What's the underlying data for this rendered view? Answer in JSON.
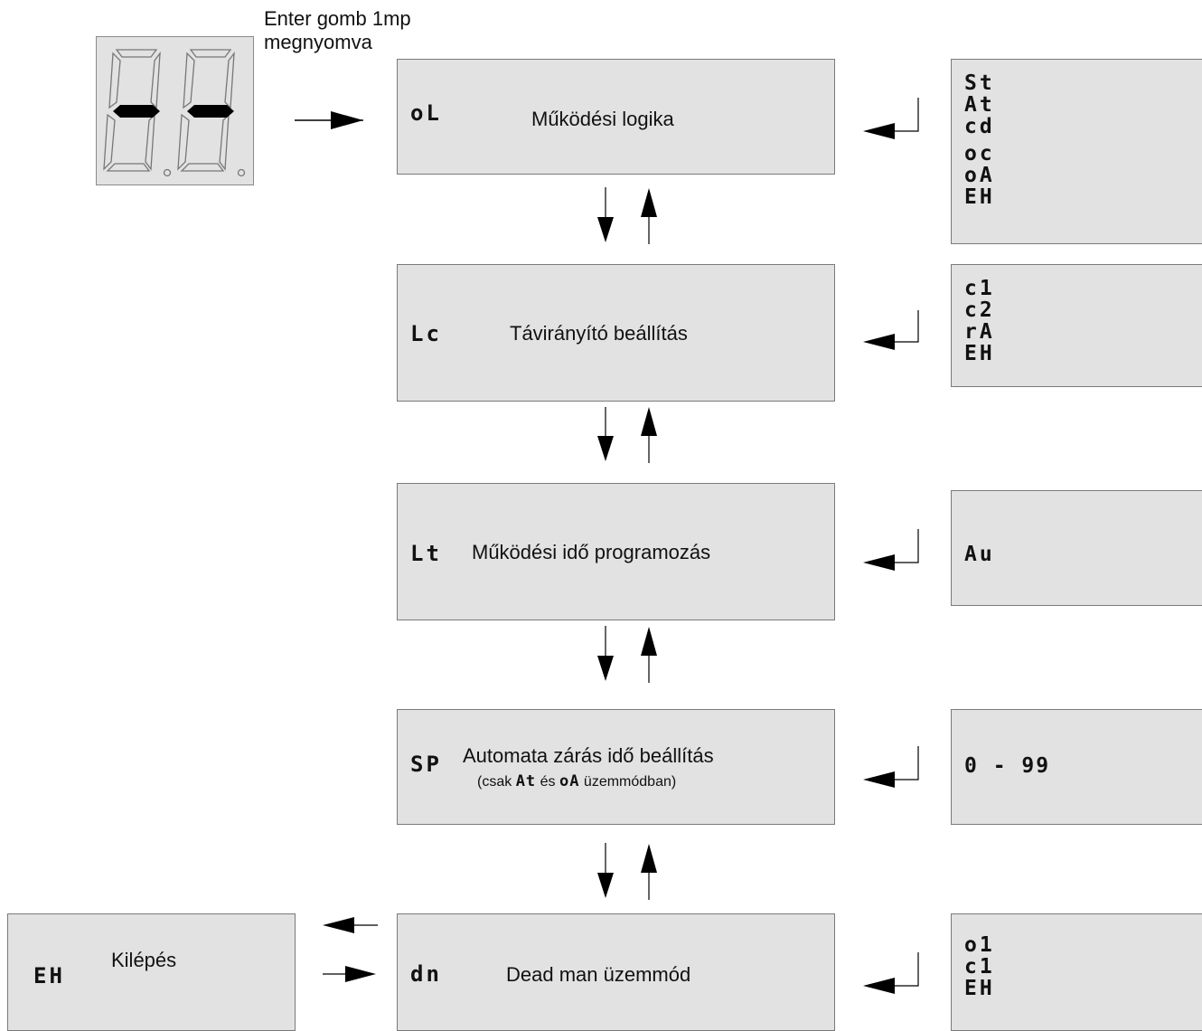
{
  "enter_note": [
    "Enter gomb 1mp",
    "megnyomva"
  ],
  "display_icon": "seven-segment-display-dashes",
  "menu": [
    {
      "code": "oL",
      "label": "Működési logika",
      "options": [
        "St",
        "At",
        "cd",
        "oc",
        "oA",
        "EH"
      ]
    },
    {
      "code": "Lc",
      "label": "Távirányító beállítás",
      "options": [
        "c1",
        "c2",
        "rA",
        "EH"
      ]
    },
    {
      "code": "Lt",
      "label": "Működési idő programozás",
      "options": [
        "Au"
      ]
    },
    {
      "code": "SP",
      "label": "Automata zárás idő beállítás",
      "sub": {
        "prefix": "(csak",
        "code1": "At",
        "middle": "és",
        "code2": "oA",
        "suffix": "üzemmódban)"
      },
      "options": [
        "0 - 99"
      ]
    },
    {
      "code": "dn",
      "label": "Dead man üzemmód",
      "options": [
        "o1",
        "c1",
        "EH"
      ]
    }
  ],
  "exit": {
    "code": "EH",
    "label": "Kilépés"
  },
  "colors": {
    "box_fill": "#e2e2e2",
    "box_border": "#7a7a7a",
    "arrow": "#000000"
  }
}
